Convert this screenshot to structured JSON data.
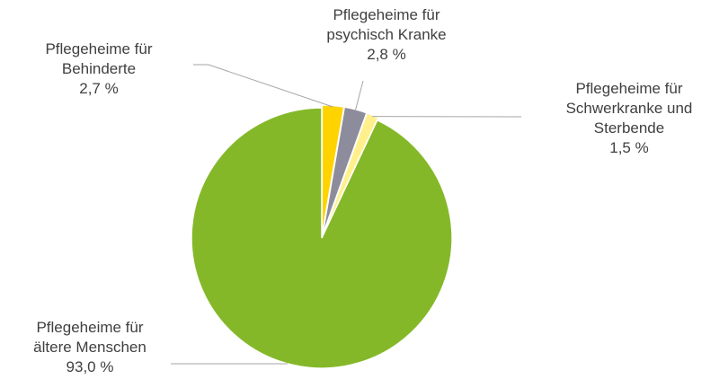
{
  "chart_data": {
    "type": "pie",
    "categories": [
      "Pflegeheime für\nBehinderte",
      "Pflegeheime für\npsychisch Kranke",
      "Pflegeheime für\nSchwerkranke und\nSterbende",
      "Pflegeheime für\nältere Menschen"
    ],
    "values": [
      2.7,
      2.8,
      1.5,
      93.0
    ],
    "value_labels": [
      "2,7 %",
      "2,8 %",
      "1,5 %",
      "93,0 %"
    ],
    "colors": [
      "#ffd300",
      "#8c8c9c",
      "#fff08c",
      "#84b829"
    ]
  }
}
